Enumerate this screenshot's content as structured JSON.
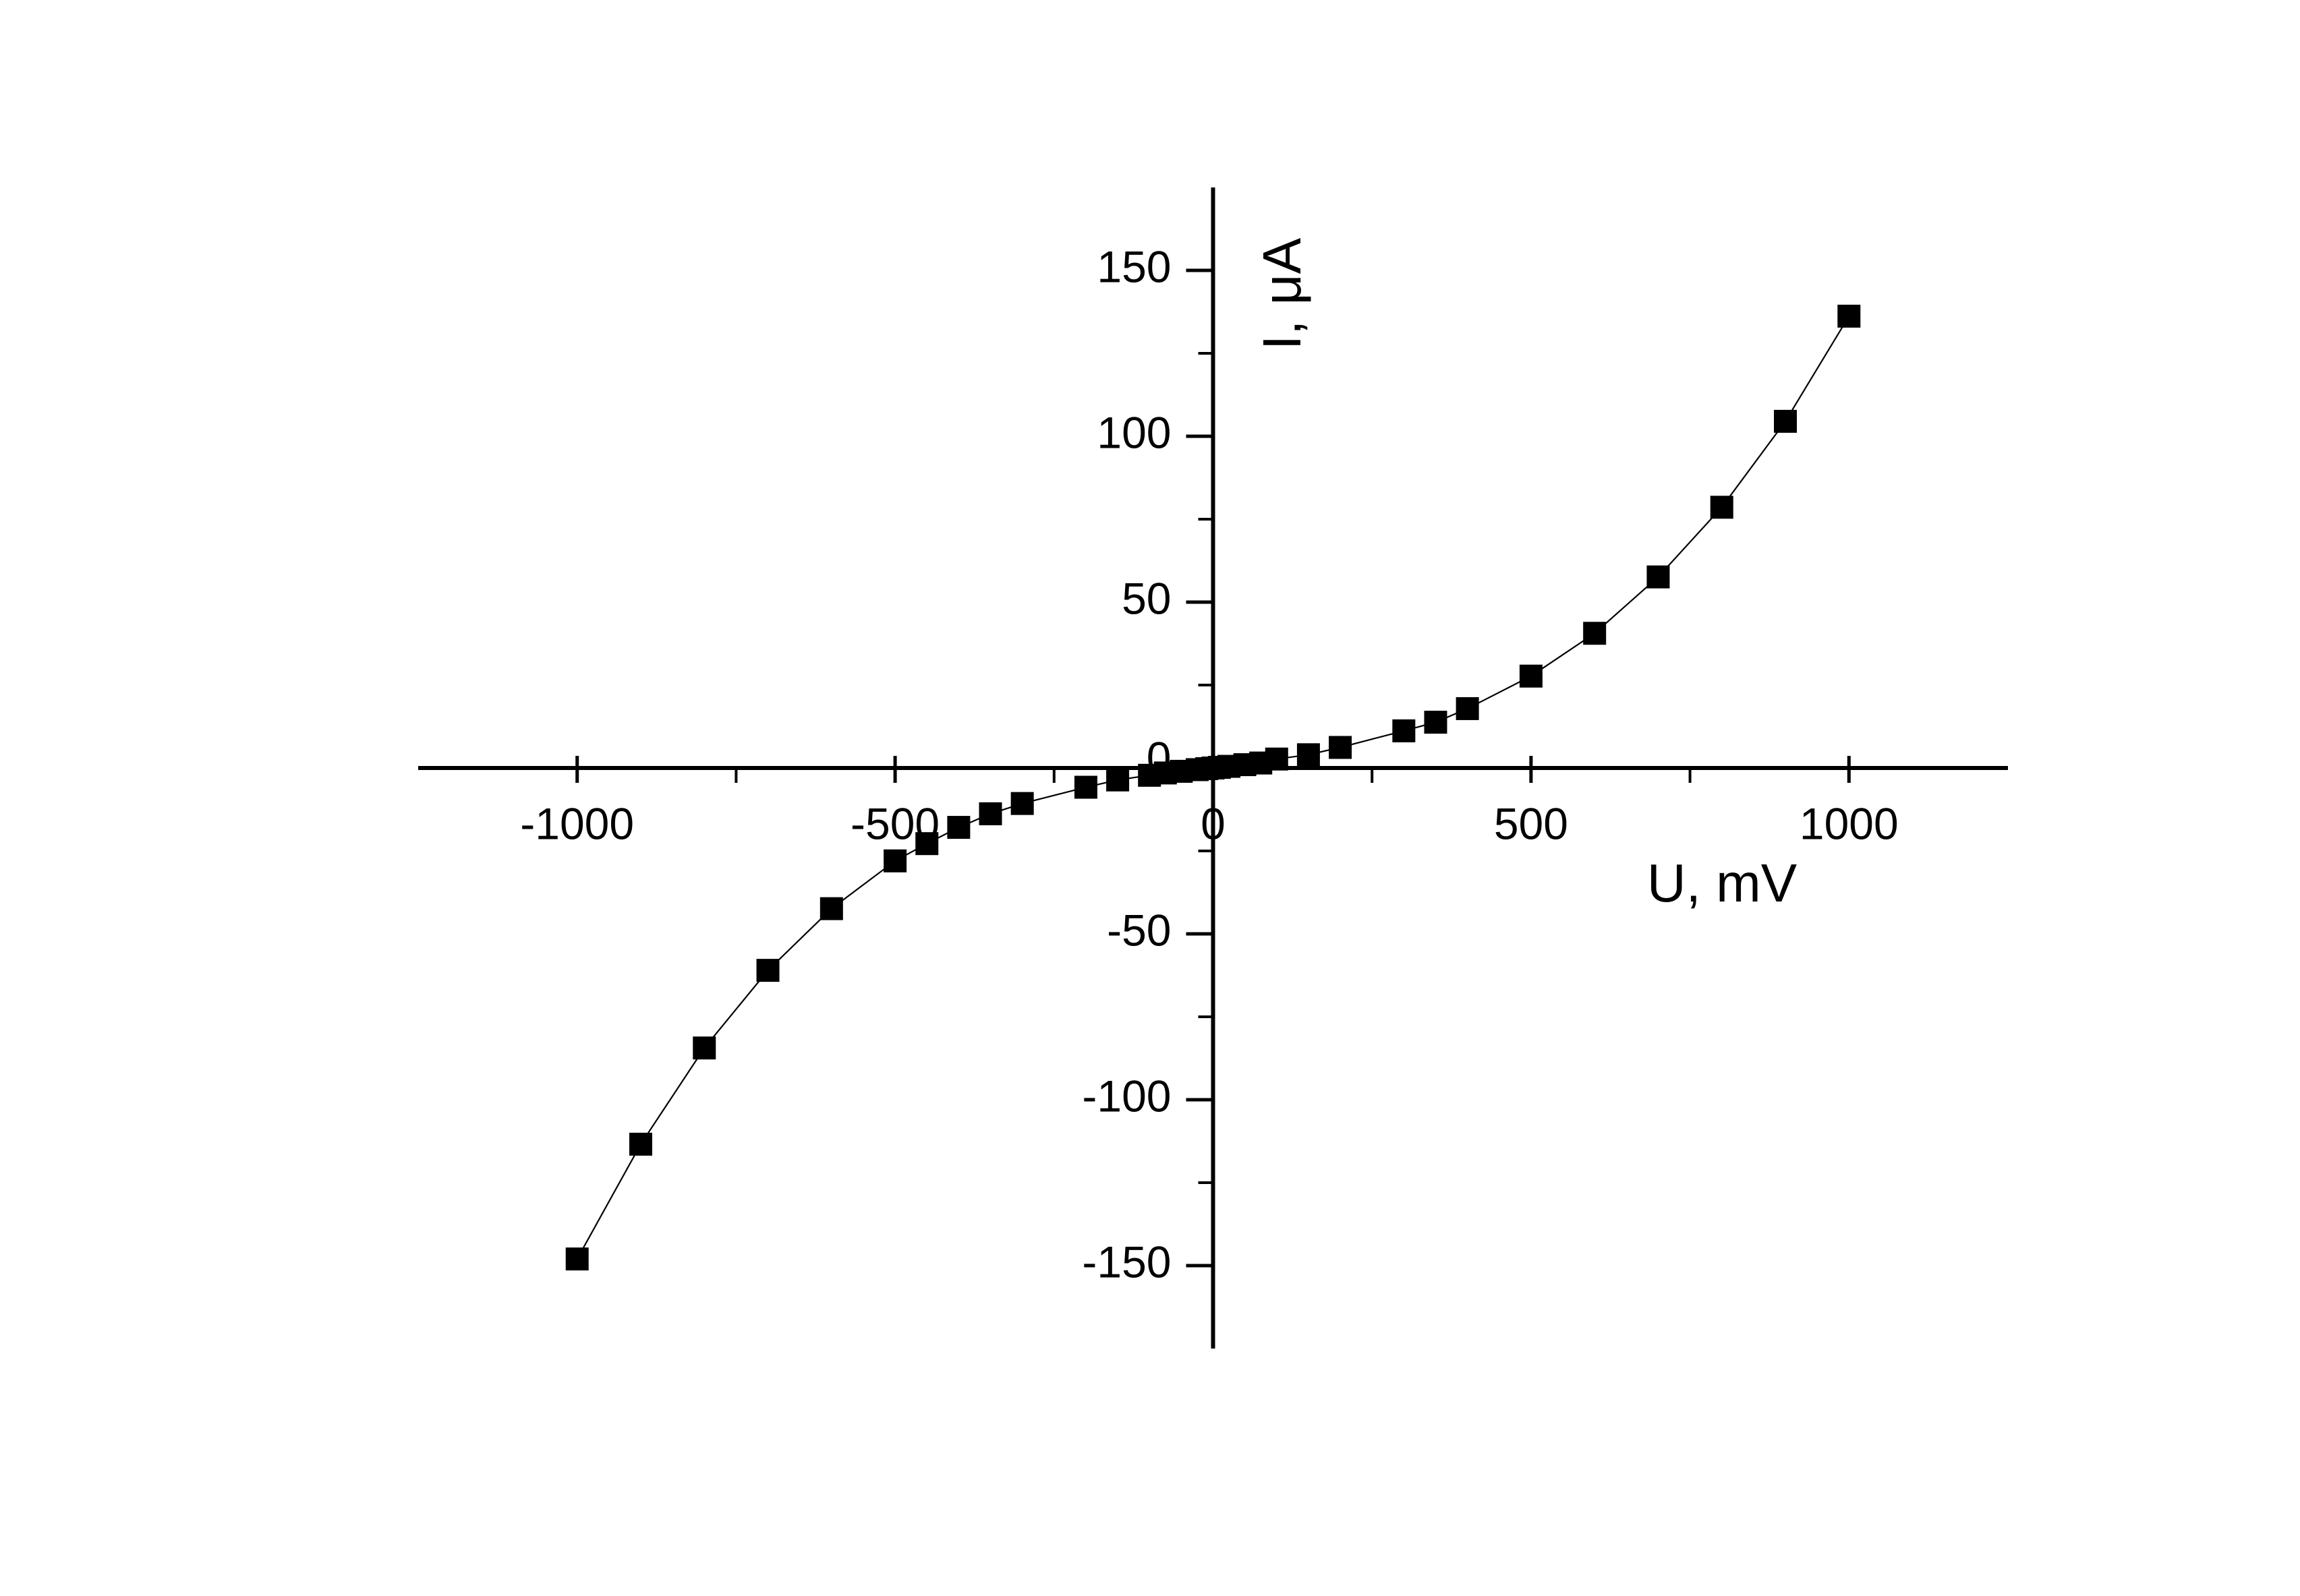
{
  "chart_data": {
    "type": "scatter-line",
    "x_label": "U, mV",
    "y_label": "I, μA",
    "x": [
      -1000,
      -900,
      -800,
      -700,
      -600,
      -500,
      -450,
      -400,
      -350,
      -300,
      -200,
      -150,
      -100,
      -75,
      -50,
      -25,
      -10,
      0,
      10,
      25,
      50,
      75,
      100,
      150,
      200,
      300,
      350,
      400,
      500,
      600,
      700,
      800,
      900,
      1000
    ],
    "series": [
      {
        "color": "#000000",
        "values": [
          -148,
          -113.4,
          -84.4,
          -61,
          -42.4,
          -28,
          -22.8,
          -17.9,
          -13.8,
          -10.7,
          -5.8,
          -3.6,
          -2.2,
          -1.5,
          -1,
          -0.5,
          -0.2,
          0,
          0.2,
          0.5,
          1,
          1.5,
          2.7,
          4,
          6.2,
          11.2,
          13.8,
          17.9,
          27.7,
          40.6,
          57.6,
          78.6,
          104.5,
          136.2
        ]
      }
    ],
    "xlim": [
      -1250,
      1250
    ],
    "ylim": [
      -175,
      175
    ],
    "xticks": [
      -1000,
      -500,
      0,
      500,
      1000
    ],
    "yticks": [
      -150,
      -100,
      -50,
      0,
      50,
      100,
      150
    ],
    "grid": false
  }
}
